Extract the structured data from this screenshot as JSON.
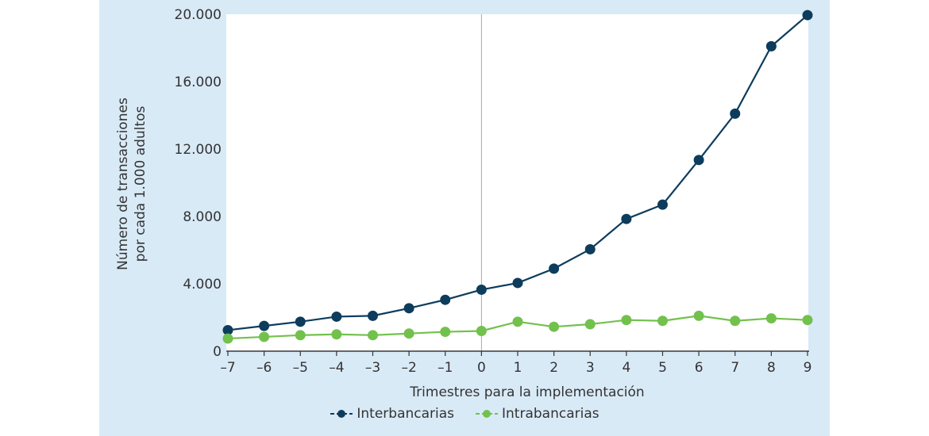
{
  "chart_data": {
    "type": "line",
    "x": [
      -7,
      -6,
      -5,
      -4,
      -3,
      -2,
      -1,
      0,
      1,
      2,
      3,
      4,
      5,
      6,
      7,
      8,
      9
    ],
    "x_tick_labels": [
      "–7",
      "–6",
      "–5",
      "–4",
      "–3",
      "–2",
      "–1",
      "0",
      "1",
      "2",
      "3",
      "4",
      "5",
      "6",
      "7",
      "8",
      "9"
    ],
    "y_tick_values": [
      0,
      4000,
      8000,
      12000,
      16000,
      20000
    ],
    "y_tick_labels": [
      "0",
      "4.000",
      "8.000",
      "12.000",
      "16.000",
      "20.000"
    ],
    "ylim": [
      0,
      20000
    ],
    "xlim": [
      -7,
      9
    ],
    "xlabel": "Trimestres para la implementación",
    "ylabel_line1": "Número de transacciones",
    "ylabel_line2": "por cada 1.000 adultos",
    "vertical_reference_x": 0,
    "grid": false,
    "legend_position": "bottom",
    "series": [
      {
        "name": "Interbancarias",
        "color": "#0d3c5c",
        "values": [
          1250,
          1500,
          1750,
          2050,
          2100,
          2550,
          3050,
          3650,
          4050,
          4900,
          6050,
          7850,
          8700,
          11350,
          14100,
          18100,
          19950
        ]
      },
      {
        "name": "Intrabancarias",
        "color": "#72c14d",
        "values": [
          750,
          850,
          950,
          1000,
          950,
          1050,
          1150,
          1200,
          1750,
          1450,
          1600,
          1850,
          1800,
          2100,
          1800,
          1950,
          1850
        ]
      }
    ]
  },
  "legend": {
    "series_1_label": "Interbancarias",
    "series_2_label": "Intrabancarias"
  }
}
